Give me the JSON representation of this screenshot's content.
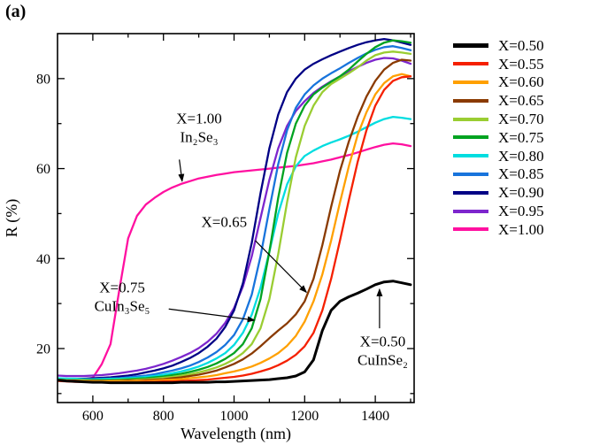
{
  "panel_label": "(a)",
  "chart_data": {
    "type": "line",
    "title": "",
    "xlabel": "Wavelength (nm)",
    "ylabel": "R (%)",
    "xlim": [
      500,
      1510
    ],
    "ylim": [
      8,
      90
    ],
    "grid": false,
    "legend_position": "right-outside",
    "x_major_ticks": [
      600,
      800,
      1000,
      1200,
      1400
    ],
    "x_minor_ticks": [
      700,
      900,
      1100,
      1300,
      1500
    ],
    "y_major_ticks": [
      20,
      40,
      60,
      80
    ],
    "y_minor_ticks": [
      10,
      30,
      50,
      70
    ],
    "x": [
      500,
      525,
      550,
      575,
      600,
      625,
      650,
      675,
      700,
      725,
      750,
      775,
      800,
      825,
      850,
      875,
      900,
      925,
      950,
      975,
      1000,
      1025,
      1050,
      1075,
      1100,
      1125,
      1150,
      1175,
      1200,
      1225,
      1250,
      1275,
      1300,
      1325,
      1350,
      1375,
      1400,
      1425,
      1450,
      1475,
      1500
    ],
    "series": [
      {
        "name": "X=0.50",
        "color": "#000000",
        "lw": 3,
        "values": [
          13.0,
          12.8,
          12.7,
          12.6,
          12.5,
          12.5,
          12.4,
          12.4,
          12.4,
          12.4,
          12.4,
          12.4,
          12.4,
          12.4,
          12.5,
          12.5,
          12.5,
          12.5,
          12.6,
          12.6,
          12.7,
          12.8,
          12.9,
          13.0,
          13.1,
          13.3,
          13.5,
          13.9,
          14.8,
          17.5,
          24.0,
          28.5,
          30.5,
          31.5,
          32.3,
          33.2,
          34.2,
          34.8,
          35.0,
          34.6,
          34.2
        ]
      },
      {
        "name": "X=0.55",
        "color": "#f52000",
        "lw": 2.3,
        "values": [
          12.8,
          12.7,
          12.6,
          12.6,
          12.5,
          12.5,
          12.5,
          12.5,
          12.5,
          12.5,
          12.6,
          12.6,
          12.7,
          12.7,
          12.8,
          12.9,
          13.0,
          13.1,
          13.3,
          13.5,
          13.7,
          14.0,
          14.4,
          14.9,
          15.5,
          16.3,
          17.3,
          18.6,
          20.5,
          23.5,
          28.5,
          35.5,
          44.0,
          53.0,
          61.5,
          68.5,
          74.0,
          77.5,
          79.5,
          80.3,
          80.5
        ]
      },
      {
        "name": "X=0.60",
        "color": "#ffa000",
        "lw": 2.3,
        "values": [
          13.0,
          12.9,
          12.8,
          12.8,
          12.7,
          12.7,
          12.7,
          12.7,
          12.7,
          12.8,
          12.8,
          12.9,
          13.0,
          13.1,
          13.2,
          13.4,
          13.6,
          13.8,
          14.1,
          14.5,
          14.9,
          15.4,
          16.0,
          16.8,
          17.8,
          19.0,
          20.6,
          22.8,
          26.0,
          30.5,
          36.5,
          44.0,
          52.5,
          60.5,
          67.5,
          72.5,
          76.5,
          79.0,
          80.5,
          81.0,
          80.5
        ]
      },
      {
        "name": "X=0.65",
        "color": "#8a3a00",
        "lw": 2.3,
        "values": [
          13.0,
          12.9,
          12.9,
          12.8,
          12.8,
          12.8,
          12.8,
          12.8,
          12.9,
          12.9,
          13.0,
          13.1,
          13.2,
          13.4,
          13.6,
          13.9,
          14.2,
          14.6,
          15.1,
          15.8,
          16.6,
          17.6,
          18.9,
          20.5,
          22.3,
          24.0,
          25.6,
          27.6,
          30.5,
          35.5,
          43.0,
          51.5,
          59.5,
          66.0,
          71.5,
          76.0,
          79.5,
          82.0,
          83.5,
          84.2,
          84.0
        ]
      },
      {
        "name": "X=0.70",
        "color": "#9acd32",
        "lw": 2.3,
        "values": [
          13.1,
          13.0,
          13.0,
          12.9,
          12.9,
          12.9,
          12.9,
          13.0,
          13.0,
          13.1,
          13.2,
          13.3,
          13.5,
          13.7,
          14.0,
          14.3,
          14.7,
          15.2,
          15.8,
          16.6,
          17.6,
          19.0,
          21.0,
          24.5,
          31.0,
          41.0,
          52.5,
          62.5,
          69.5,
          74.0,
          77.0,
          78.8,
          80.0,
          81.2,
          82.5,
          84.0,
          85.2,
          85.8,
          86.0,
          85.8,
          85.5
        ]
      },
      {
        "name": "X=0.75",
        "color": "#00a321",
        "lw": 2.3,
        "values": [
          13.1,
          13.0,
          13.0,
          13.0,
          13.0,
          13.0,
          13.0,
          13.1,
          13.2,
          13.3,
          13.4,
          13.6,
          13.8,
          14.1,
          14.4,
          14.8,
          15.3,
          15.9,
          16.7,
          17.7,
          19.0,
          21.0,
          24.5,
          31.0,
          41.5,
          53.5,
          63.5,
          70.0,
          74.0,
          76.5,
          78.0,
          79.3,
          80.5,
          82.0,
          83.8,
          85.5,
          87.0,
          88.0,
          88.5,
          88.3,
          88.0
        ]
      },
      {
        "name": "X=0.80",
        "color": "#00dde0",
        "lw": 2.3,
        "values": [
          13.4,
          13.3,
          13.3,
          13.2,
          13.2,
          13.2,
          13.3,
          13.3,
          13.4,
          13.5,
          13.7,
          13.9,
          14.2,
          14.5,
          14.9,
          15.4,
          16.0,
          16.8,
          17.8,
          19.0,
          20.8,
          23.5,
          27.5,
          33.5,
          41.5,
          50.0,
          56.5,
          60.5,
          62.8,
          64.0,
          65.0,
          65.8,
          66.5,
          67.3,
          68.2,
          69.2,
          70.2,
          71.0,
          71.5,
          71.3,
          71.0
        ]
      },
      {
        "name": "X=0.85",
        "color": "#1874dc",
        "lw": 2.3,
        "values": [
          13.3,
          13.3,
          13.2,
          13.2,
          13.2,
          13.3,
          13.3,
          13.4,
          13.6,
          13.8,
          14.0,
          14.3,
          14.7,
          15.1,
          15.6,
          16.2,
          17.0,
          18.0,
          19.2,
          20.8,
          23.0,
          26.5,
          32.0,
          40.5,
          51.0,
          61.0,
          68.5,
          73.5,
          76.5,
          78.5,
          80.0,
          81.2,
          82.3,
          83.5,
          84.6,
          85.6,
          86.4,
          87.0,
          87.2,
          86.8,
          86.3
        ]
      },
      {
        "name": "X=0.90",
        "color": "#000085",
        "lw": 2.3,
        "values": [
          13.3,
          13.3,
          13.3,
          13.3,
          13.4,
          13.5,
          13.6,
          13.8,
          14.0,
          14.3,
          14.7,
          15.1,
          15.6,
          16.2,
          17.0,
          17.9,
          19.0,
          20.4,
          22.2,
          24.8,
          28.5,
          34.5,
          43.5,
          54.5,
          64.5,
          72.0,
          77.0,
          80.0,
          82.0,
          83.3,
          84.3,
          85.2,
          86.0,
          86.8,
          87.5,
          88.1,
          88.5,
          88.8,
          88.5,
          88.0,
          87.5
        ]
      },
      {
        "name": "X=0.95",
        "color": "#7d26cd",
        "lw": 2.3,
        "values": [
          14.0,
          13.9,
          13.9,
          13.9,
          14.0,
          14.1,
          14.3,
          14.5,
          14.8,
          15.1,
          15.5,
          16.0,
          16.6,
          17.3,
          18.1,
          19.0,
          20.1,
          21.5,
          23.3,
          25.7,
          29.0,
          33.8,
          40.5,
          49.0,
          57.5,
          64.5,
          69.5,
          72.8,
          75.0,
          76.8,
          78.2,
          79.4,
          80.5,
          81.6,
          82.6,
          83.5,
          84.2,
          84.6,
          84.5,
          84.0,
          83.3
        ]
      },
      {
        "name": "X=1.00",
        "color": "#ff10a0",
        "lw": 2.3,
        "values": [
          13.2,
          13.1,
          13.1,
          13.2,
          13.5,
          16.5,
          21.0,
          33.0,
          44.5,
          49.5,
          52.0,
          53.5,
          54.8,
          55.8,
          56.6,
          57.2,
          57.8,
          58.2,
          58.6,
          58.9,
          59.2,
          59.4,
          59.6,
          59.8,
          60.0,
          60.2,
          60.4,
          60.6,
          60.9,
          61.2,
          61.6,
          62.0,
          62.5,
          63.0,
          63.6,
          64.2,
          64.8,
          65.3,
          65.6,
          65.4,
          65.0
        ]
      }
    ],
    "annotations": [
      {
        "lines": [
          "X=1.00",
          "In₂Se₃"
        ],
        "x": 901,
        "y": 70,
        "arrow": {
          "x1": 845,
          "y1": 62,
          "x2": 853,
          "y2": 57.2
        }
      },
      {
        "lines": [
          "X=0.65"
        ],
        "x": 972,
        "y": 47,
        "arrow": {
          "x1": 1060,
          "y1": 44,
          "x2": 1205,
          "y2": 32.5
        }
      },
      {
        "lines": [
          "X=0.75",
          "CuIn₃Se₅"
        ],
        "x": 683,
        "y": 32.5,
        "arrow": {
          "x1": 815,
          "y1": 28.8,
          "x2": 1058,
          "y2": 26.3
        }
      },
      {
        "lines": [
          "X=0.50",
          "CuInSe₂"
        ],
        "x": 1421,
        "y": 20.5,
        "arrow": {
          "x1": 1412,
          "y1": 24.5,
          "x2": 1412,
          "y2": 33.2
        }
      }
    ]
  }
}
